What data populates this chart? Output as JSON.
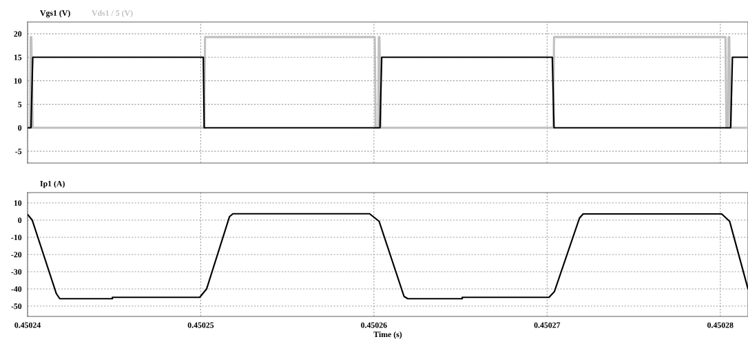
{
  "chart_data": [
    {
      "type": "line",
      "xlim": [
        0.45024,
        0.4502816
      ],
      "xticks": [
        0.45024,
        0.45025,
        0.45026,
        0.45027,
        0.45028
      ],
      "ylim": [
        -7.5,
        22.5
      ],
      "yticks": [
        -5,
        0,
        5,
        10,
        15,
        20
      ],
      "grid": true,
      "tick_labels": "y",
      "series": [
        {
          "name": "Vgs1 (V)",
          "color": "#000000",
          "x": [
            0.45024,
            0.4502402,
            0.4502403,
            0.45025015,
            0.4502502,
            0.45026035,
            0.45026045,
            0.4502703,
            0.4502704,
            0.4502806,
            0.4502807,
            0.4502816
          ],
          "values": [
            0,
            0,
            15,
            15,
            0,
            0,
            15,
            15,
            0,
            0,
            15,
            15
          ]
        },
        {
          "name": "Vds1 / 5 (V)",
          "color": "#c0c0c0",
          "x": [
            0.45024,
            0.45024015,
            0.45024018,
            0.45024022,
            0.4502403,
            0.4502502,
            0.45025025,
            0.45026005,
            0.4502601,
            0.45026025,
            0.45026028,
            0.45026032,
            0.4502604,
            0.45027035,
            0.4502704,
            0.4502803,
            0.45028035,
            0.45028045,
            0.45028048,
            0.45028052,
            0.4502806,
            0.4502816
          ],
          "values": [
            0,
            0,
            19.3,
            19.3,
            0,
            0,
            19.3,
            19.3,
            0,
            0,
            19.3,
            19.3,
            0,
            0,
            19.3,
            19.3,
            0,
            0,
            19.3,
            19.3,
            0,
            0
          ]
        }
      ]
    },
    {
      "type": "line",
      "xlim": [
        0.45024,
        0.4502816
      ],
      "xticks": [
        0.45024,
        0.45025,
        0.45026,
        0.45027,
        0.45028
      ],
      "ylim": [
        -56,
        16
      ],
      "yticks": [
        -50,
        -40,
        -30,
        -20,
        -10,
        0,
        10
      ],
      "grid": true,
      "xlabel": "Time (s)",
      "series": [
        {
          "name": "Ip1 (A)",
          "color": "#000000",
          "x": [
            0.45024,
            0.45024027,
            0.45024166,
            0.45024186,
            0.4502449,
            0.4502449,
            0.45024994,
            0.45025034,
            0.45025166,
            0.45025186,
            0.45025975,
            0.4502603,
            0.45026174,
            0.45026196,
            0.4502651,
            0.4502651,
            0.45027011,
            0.45027042,
            0.45027187,
            0.45027208,
            0.45028008,
            0.45028054,
            0.4502816
          ],
          "values": [
            3.3,
            0,
            -42.7,
            -45.7,
            -45.7,
            -44.9,
            -44.9,
            -40,
            2,
            3.7,
            3.7,
            -0.7,
            -44.4,
            -45.7,
            -45.7,
            -44.9,
            -44.9,
            -41.6,
            1.2,
            3.6,
            3.6,
            -0.7,
            -40
          ]
        }
      ]
    }
  ]
}
